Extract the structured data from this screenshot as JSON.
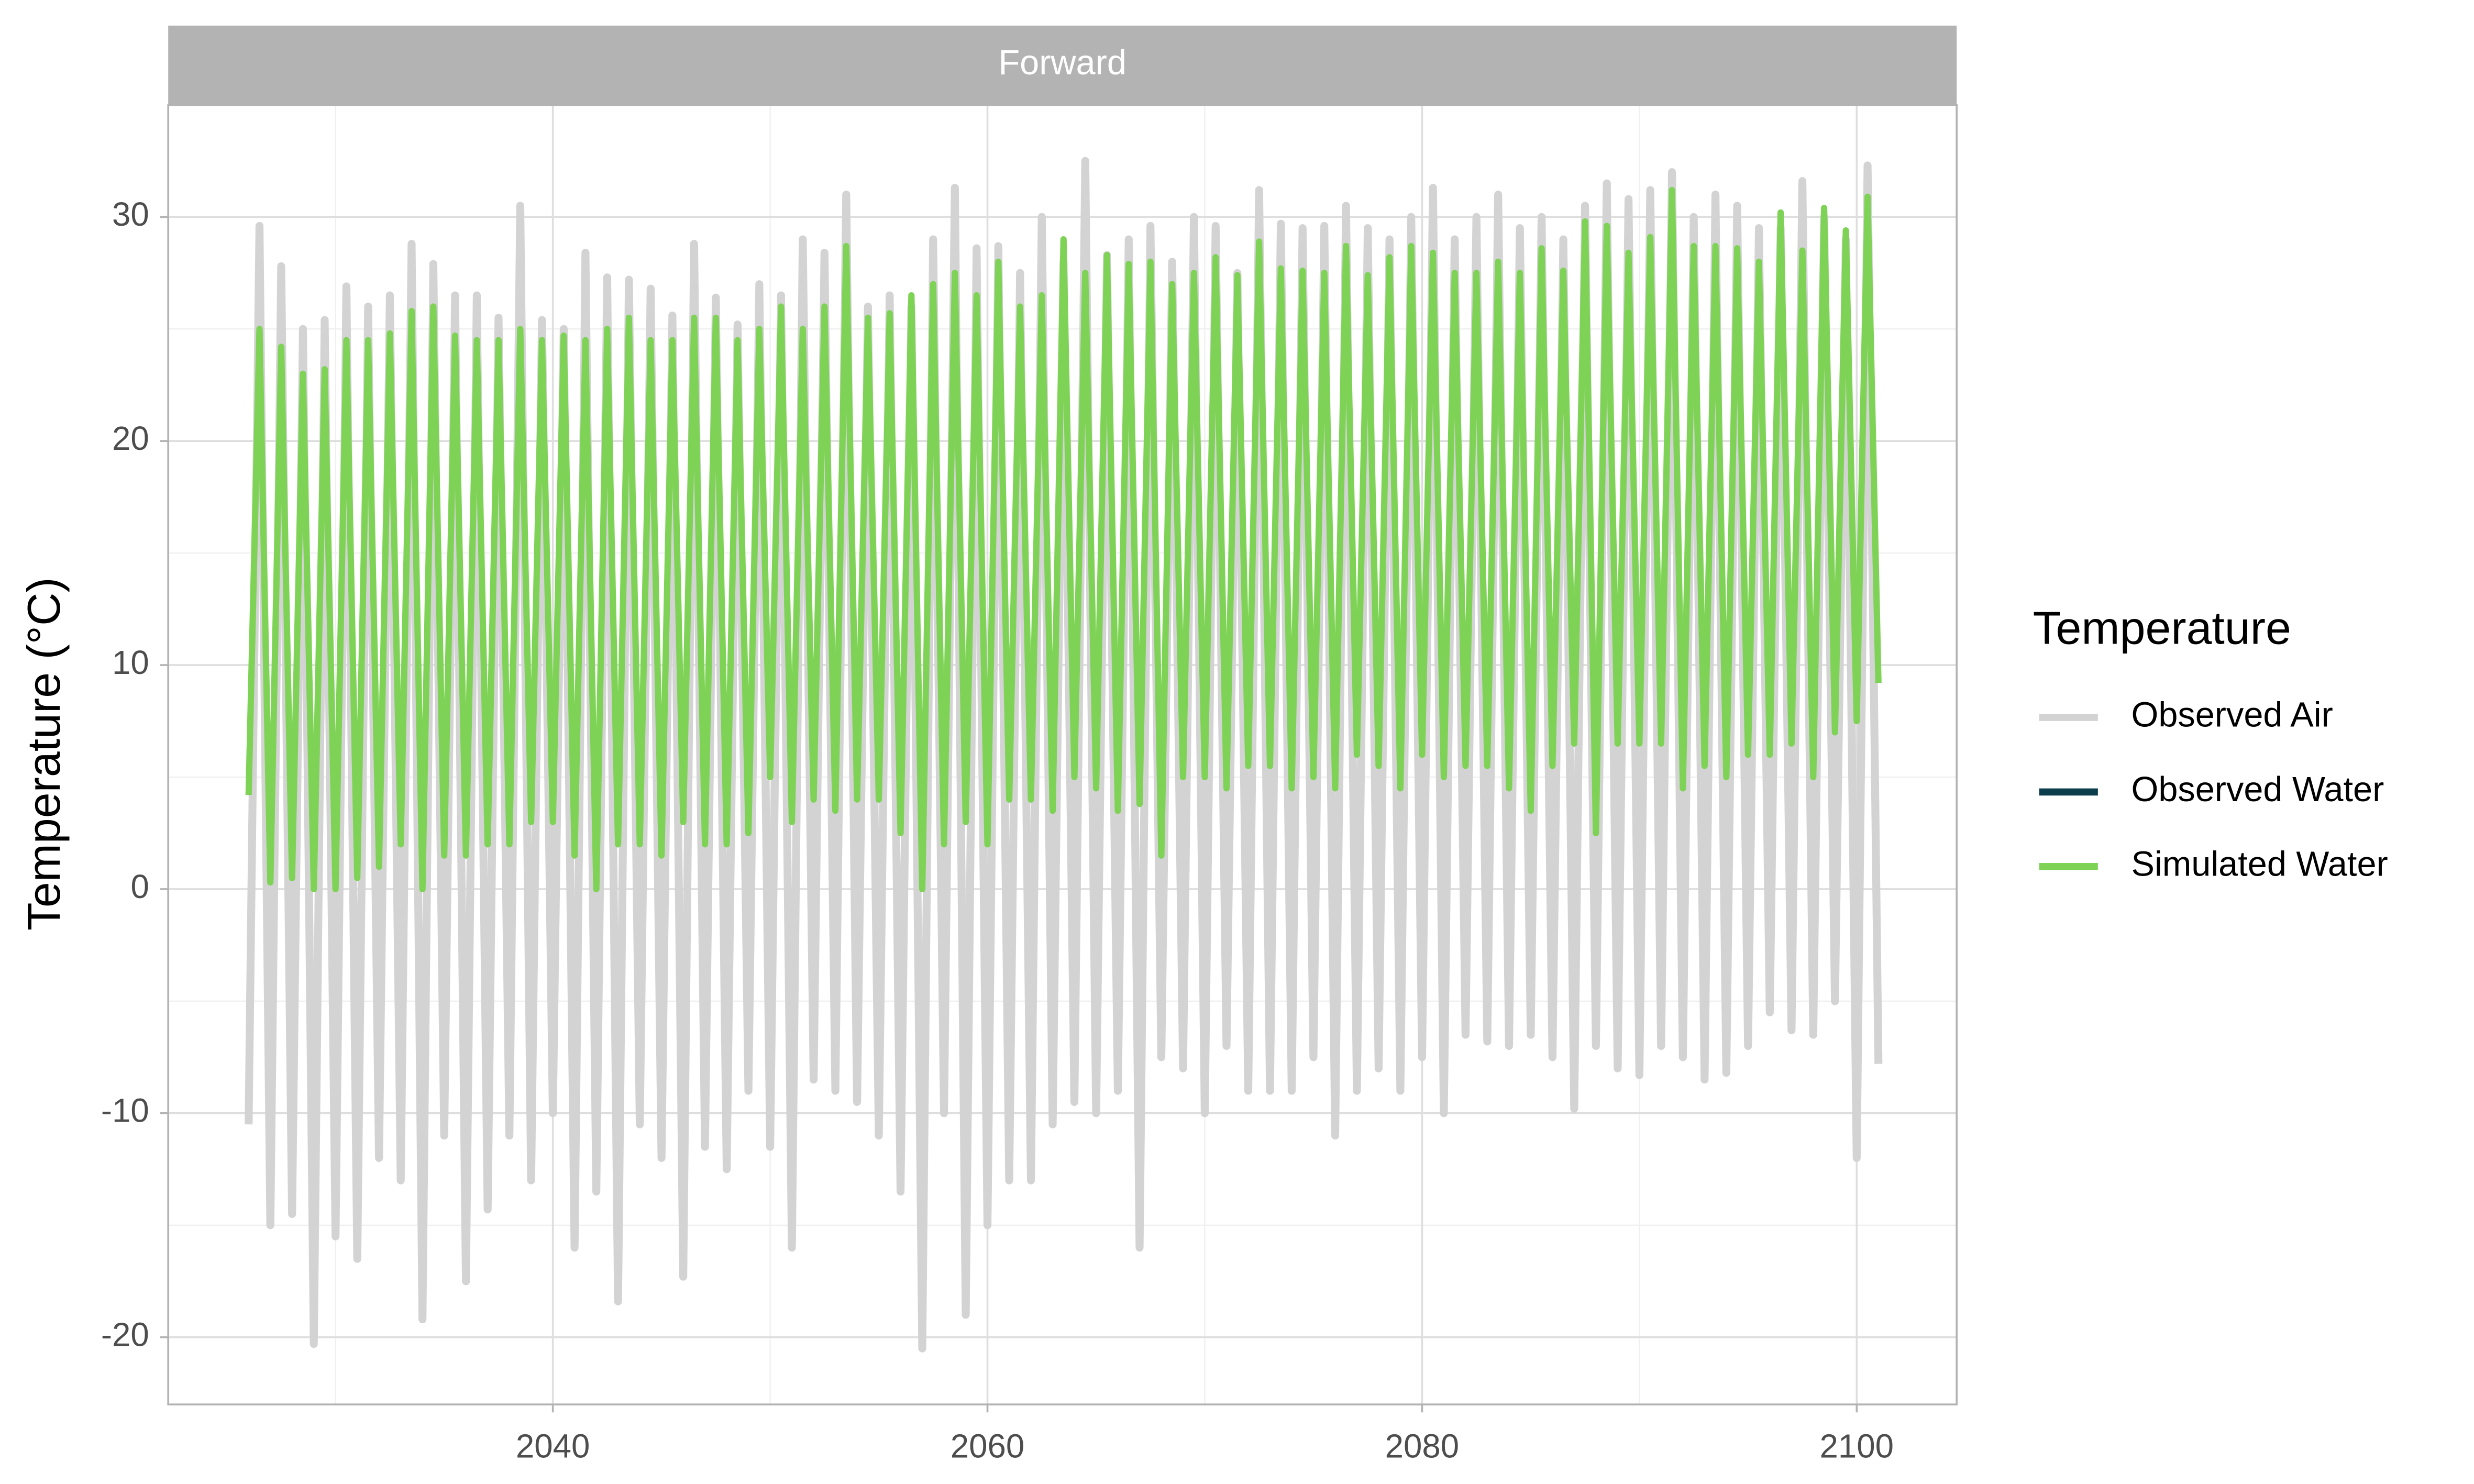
{
  "chart_data": {
    "type": "line",
    "strip": "Forward",
    "y_label": "Temperature (°C)",
    "legend_title": "Temperature",
    "legend_position": "right",
    "grid": true,
    "xlim": [
      2022.3,
      2104.6
    ],
    "xticks": [
      2040,
      2060,
      2080,
      2100
    ],
    "ylim": [
      -23,
      35
    ],
    "yticks": [
      -20,
      -10,
      0,
      10,
      20,
      30
    ],
    "x": [
      2026,
      2026.5,
      2027,
      2027.5,
      2028,
      2028.5,
      2029,
      2029.5,
      2030,
      2030.5,
      2031,
      2031.5,
      2032,
      2032.5,
      2033,
      2033.5,
      2034,
      2034.5,
      2035,
      2035.5,
      2036,
      2036.5,
      2037,
      2037.5,
      2038,
      2038.5,
      2039,
      2039.5,
      2040,
      2040.5,
      2041,
      2041.5,
      2042,
      2042.5,
      2043,
      2043.5,
      2044,
      2044.5,
      2045,
      2045.5,
      2046,
      2046.5,
      2047,
      2047.5,
      2048,
      2048.5,
      2049,
      2049.5,
      2050,
      2050.5,
      2051,
      2051.5,
      2052,
      2052.5,
      2053,
      2053.5,
      2054,
      2054.5,
      2055,
      2055.5,
      2056,
      2056.5,
      2057,
      2057.5,
      2058,
      2058.5,
      2059,
      2059.5,
      2060,
      2060.5,
      2061,
      2061.5,
      2062,
      2062.5,
      2063,
      2063.5,
      2064,
      2064.5,
      2065,
      2065.5,
      2066,
      2066.5,
      2067,
      2067.5,
      2068,
      2068.5,
      2069,
      2069.5,
      2070,
      2070.5,
      2071,
      2071.5,
      2072,
      2072.5,
      2073,
      2073.5,
      2074,
      2074.5,
      2075,
      2075.5,
      2076,
      2076.5,
      2077,
      2077.5,
      2078,
      2078.5,
      2079,
      2079.5,
      2080,
      2080.5,
      2081,
      2081.5,
      2082,
      2082.5,
      2083,
      2083.5,
      2084,
      2084.5,
      2085,
      2085.5,
      2086,
      2086.5,
      2087,
      2087.5,
      2088,
      2088.5,
      2089,
      2089.5,
      2090,
      2090.5,
      2091,
      2091.5,
      2092,
      2092.5,
      2093,
      2093.5,
      2094,
      2094.5,
      2095,
      2095.5,
      2096,
      2096.5,
      2097,
      2097.5,
      2098,
      2098.5,
      2099,
      2099.5,
      2100,
      2100.5,
      2101
    ],
    "series": [
      {
        "name": "Observed Air",
        "color": "#d3d3d3",
        "values": [
          -10.5,
          29.6,
          -15,
          27.8,
          -14.5,
          25,
          -20.3,
          25.4,
          -15.5,
          26.9,
          -16.5,
          26,
          -12,
          26.5,
          -13,
          28.8,
          -19.2,
          27.9,
          -11,
          26.5,
          -17.5,
          26.5,
          -14.3,
          25.5,
          -11,
          30.5,
          -13,
          25.4,
          -10,
          25,
          -16,
          28.4,
          -13.5,
          27.3,
          -18.4,
          27.2,
          -10.5,
          26.8,
          -12,
          25.6,
          -17.3,
          28.8,
          -11.5,
          26.4,
          -12.5,
          25.2,
          -9,
          27,
          -11.5,
          26.5,
          -16,
          29,
          -8.5,
          28.4,
          -9,
          31,
          -9.5,
          26,
          -11,
          26.5,
          -13.5,
          26,
          -20.5,
          29,
          -10,
          31.3,
          -19,
          28.6,
          -15,
          28.7,
          -13,
          27.5,
          -13,
          30,
          -10.5,
          28,
          -9.5,
          32.5,
          -10,
          28.3,
          -9,
          29,
          -16,
          29.6,
          -7.5,
          28,
          -8,
          30,
          -10,
          29.6,
          -7,
          27.5,
          -9,
          31.2,
          -9,
          29.7,
          -9,
          29.5,
          -7.5,
          29.6,
          -11,
          30.5,
          -9,
          29.5,
          -8,
          29,
          -9,
          30,
          -7.5,
          31.3,
          -10,
          29,
          -6.5,
          30,
          -6.8,
          31,
          -7,
          29.5,
          -6.5,
          30,
          -7.5,
          29,
          -9.8,
          30.5,
          -7,
          31.5,
          -8,
          30.8,
          -8.3,
          31.2,
          -7,
          32,
          -7.5,
          30,
          -8.5,
          31,
          -8.2,
          30.5,
          -7,
          29.5,
          -5.5,
          29.5,
          -6.3,
          31.6,
          -6.5,
          30,
          -5,
          29,
          -12,
          32.3,
          -7.8
        ]
      },
      {
        "name": "Observed Water",
        "color": "#0b3d4c",
        "values": [
          null,
          null,
          null,
          null,
          null,
          null,
          null,
          null,
          null,
          null,
          null,
          null,
          null,
          null,
          null,
          null,
          null,
          null,
          null,
          null,
          null,
          null,
          null,
          null,
          null,
          null,
          null,
          null,
          null,
          null,
          null,
          null,
          null,
          null,
          null,
          null,
          null,
          null,
          null,
          null,
          null,
          null,
          null,
          null,
          null,
          null,
          null,
          null,
          null,
          null,
          null,
          null,
          null,
          null,
          null,
          null,
          null,
          null,
          null,
          null,
          null,
          null,
          null,
          null,
          null,
          null,
          null,
          null,
          null,
          null,
          null,
          null,
          null,
          null,
          null,
          null,
          null,
          null,
          null,
          null,
          null,
          null,
          null,
          null,
          null,
          null,
          null,
          null,
          null,
          null,
          null,
          null,
          null,
          null,
          null,
          null,
          null,
          null,
          null,
          null,
          null,
          null,
          null,
          null,
          null,
          null,
          null,
          null,
          null,
          null,
          null,
          null,
          null,
          null,
          null,
          null,
          null,
          null,
          null,
          null,
          null,
          null,
          null,
          null,
          null,
          null,
          null,
          null,
          null,
          null,
          null,
          null,
          null,
          null,
          null,
          null,
          null,
          null,
          null,
          null,
          null,
          null,
          null,
          null,
          null,
          null,
          null,
          null,
          null,
          null,
          null
        ]
      },
      {
        "name": "Simulated Water",
        "color": "#7ed356",
        "values": [
          4.2,
          25,
          0.3,
          24.2,
          0.5,
          23,
          0,
          23.2,
          0,
          24.5,
          0.5,
          24.5,
          1,
          24.8,
          2,
          25.8,
          0,
          26,
          1.5,
          24.7,
          1.5,
          24.5,
          2,
          24.5,
          2,
          25,
          3,
          24.5,
          3,
          24.7,
          1.5,
          24.5,
          0,
          25,
          2,
          25.5,
          2,
          24.5,
          1.5,
          24.5,
          3,
          25.5,
          2,
          25.5,
          2,
          24.5,
          2.5,
          25,
          5,
          26,
          3,
          25,
          4,
          26,
          3.5,
          28.7,
          4,
          25.5,
          4,
          25.7,
          2.5,
          26.5,
          0,
          27,
          2,
          27.5,
          3,
          26.5,
          2,
          28,
          4,
          26,
          4,
          26.5,
          3.5,
          29,
          5,
          27.5,
          4.5,
          28.3,
          3.5,
          27.9,
          3.8,
          28,
          1.5,
          27,
          5,
          27.5,
          5,
          28.2,
          4.5,
          27.4,
          5.5,
          28.9,
          5.5,
          27.7,
          4.5,
          27.6,
          5,
          27.5,
          4.5,
          28.7,
          6,
          27.4,
          5.5,
          28.2,
          4.5,
          28.7,
          6,
          28.4,
          5,
          27.5,
          5.5,
          27.5,
          5.5,
          28,
          4.5,
          27.5,
          3.5,
          28.6,
          5.5,
          27.6,
          6.5,
          29.8,
          2.5,
          29.6,
          6.5,
          28.4,
          6.5,
          29.1,
          6.5,
          31.2,
          4.5,
          28.7,
          5.5,
          28.7,
          5,
          28.6,
          6,
          28,
          6,
          30.2,
          6.5,
          28.5,
          5,
          30.4,
          7,
          29.4,
          7.5,
          30.9,
          9.2
        ]
      }
    ]
  }
}
